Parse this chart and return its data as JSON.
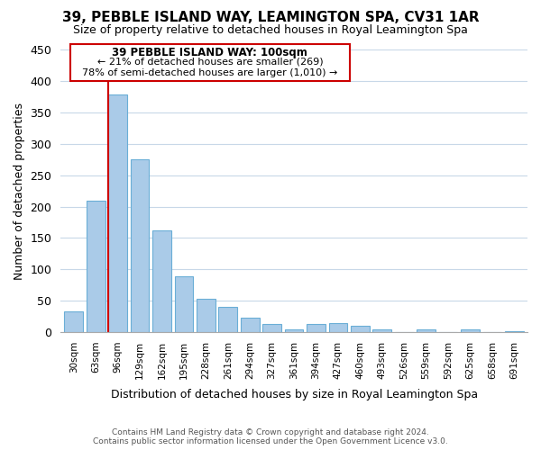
{
  "title": "39, PEBBLE ISLAND WAY, LEAMINGTON SPA, CV31 1AR",
  "subtitle": "Size of property relative to detached houses in Royal Leamington Spa",
  "xlabel": "Distribution of detached houses by size in Royal Leamington Spa",
  "ylabel": "Number of detached properties",
  "bar_color": "#aacbe8",
  "bar_edge_color": "#6aaed6",
  "highlight_bar_edge_color": "#cc0000",
  "background_color": "#ffffff",
  "grid_color": "#c8d8e8",
  "categories": [
    "30sqm",
    "63sqm",
    "96sqm",
    "129sqm",
    "162sqm",
    "195sqm",
    "228sqm",
    "261sqm",
    "294sqm",
    "327sqm",
    "361sqm",
    "394sqm",
    "427sqm",
    "460sqm",
    "493sqm",
    "526sqm",
    "559sqm",
    "592sqm",
    "625sqm",
    "658sqm",
    "691sqm"
  ],
  "values": [
    33,
    210,
    378,
    275,
    162,
    89,
    53,
    40,
    23,
    13,
    5,
    13,
    15,
    10,
    4,
    0,
    4,
    0,
    4,
    0,
    1
  ],
  "red_line_bar_index": 2,
  "annotation_title": "39 PEBBLE ISLAND WAY: 100sqm",
  "annotation_line1": "← 21% of detached houses are smaller (269)",
  "annotation_line2": "78% of semi-detached houses are larger (1,010) →",
  "ylim": [
    0,
    450
  ],
  "yticks": [
    0,
    50,
    100,
    150,
    200,
    250,
    300,
    350,
    400,
    450
  ],
  "footer_line1": "Contains HM Land Registry data © Crown copyright and database right 2024.",
  "footer_line2": "Contains public sector information licensed under the Open Government Licence v3.0.",
  "annotation_box_color": "#ffffff",
  "annotation_box_edge_color": "#cc0000",
  "figsize": [
    6.0,
    5.0
  ],
  "dpi": 100
}
